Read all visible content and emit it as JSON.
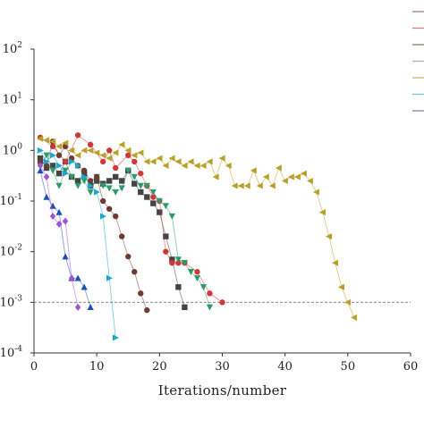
{
  "chart_data": {
    "type": "line",
    "xlabel": "Iterations/number",
    "ylabel": "",
    "xlim": [
      0,
      60
    ],
    "ylim": [
      0.0001,
      100
    ],
    "yscale": "log",
    "x_ticks": [
      0,
      10,
      20,
      30,
      40,
      50,
      60
    ],
    "y_ticks": [
      {
        "value": 0.0001,
        "base": "10",
        "exp": "-4"
      },
      {
        "value": 0.001,
        "base": "10",
        "exp": "-3"
      },
      {
        "value": 0.01,
        "base": "10",
        "exp": "-2"
      },
      {
        "value": 0.1,
        "base": "10",
        "exp": "-1"
      },
      {
        "value": 1,
        "base": "10",
        "exp": "0"
      },
      {
        "value": 10,
        "base": "10",
        "exp": "1"
      },
      {
        "value": 100,
        "base": "10",
        "exp": "2"
      }
    ],
    "reference_line": {
      "y": 0.001,
      "style": "dashed",
      "color": "#777777"
    },
    "grid": false,
    "legend": {
      "placement": "top-right",
      "swatch_colors": [
        "#9e7b9b",
        "#e07a8a",
        "#8a7a6a",
        "#b0b0b0",
        "#c8b464",
        "#70c8c8",
        "#9b78c8"
      ]
    },
    "series": [
      {
        "color": "#444444",
        "marker": "square",
        "x": [
          1,
          2,
          3,
          4,
          5,
          6,
          7,
          8,
          9,
          10,
          11,
          12,
          13,
          14,
          15,
          16,
          17,
          18,
          19,
          20,
          21,
          22,
          23,
          24
        ],
        "y": [
          0.7,
          0.45,
          0.5,
          0.35,
          0.6,
          0.3,
          0.25,
          0.35,
          0.2,
          0.25,
          0.22,
          0.25,
          0.3,
          0.25,
          0.4,
          0.22,
          0.15,
          0.12,
          0.09,
          0.06,
          0.02,
          0.007,
          0.002,
          0.0008
        ]
      },
      {
        "color": "#d03838",
        "marker": "circle",
        "x": [
          1,
          3,
          5,
          7,
          9,
          11,
          12,
          13,
          15,
          16,
          17,
          18,
          19,
          20,
          21,
          22,
          23,
          24,
          26,
          28,
          30
        ],
        "y": [
          1.8,
          1.2,
          0.6,
          2.0,
          1.3,
          0.6,
          1.0,
          0.45,
          0.8,
          0.6,
          0.35,
          0.2,
          0.12,
          0.1,
          0.01,
          0.006,
          0.006,
          0.006,
          0.004,
          0.0015,
          0.001
        ]
      },
      {
        "color": "#2e9a6a",
        "marker": "triangle-down",
        "x": [
          1,
          2,
          3,
          4,
          5,
          6,
          7,
          8,
          9,
          10,
          11,
          12,
          13,
          14,
          15,
          16,
          17,
          18,
          19,
          20,
          21,
          22,
          23,
          24,
          25,
          26,
          27,
          28
        ],
        "y": [
          0.5,
          0.8,
          0.4,
          0.2,
          0.4,
          0.3,
          0.2,
          0.25,
          0.15,
          0.3,
          0.2,
          0.18,
          0.15,
          0.18,
          0.4,
          0.3,
          0.2,
          0.2,
          0.15,
          0.1,
          0.08,
          0.05,
          0.007,
          0.006,
          0.004,
          0.003,
          0.002,
          0.0008
        ]
      },
      {
        "color": "#6e3a32",
        "marker": "circle",
        "x": [
          1,
          2,
          3,
          4,
          5,
          6,
          7,
          8,
          9,
          10,
          11,
          12,
          13,
          14,
          15,
          16,
          17,
          18
        ],
        "y": [
          0.6,
          0.5,
          1.5,
          0.8,
          1.2,
          0.7,
          0.5,
          0.4,
          0.25,
          0.3,
          0.1,
          0.07,
          0.05,
          0.02,
          0.008,
          0.004,
          0.0015,
          0.0007
        ]
      },
      {
        "color": "#1da7c8",
        "marker": "triangle-right",
        "x": [
          1,
          2,
          3,
          4,
          5,
          6,
          7,
          8,
          9,
          10,
          11,
          12,
          13
        ],
        "y": [
          1.0,
          0.6,
          0.8,
          0.5,
          0.35,
          0.6,
          0.5,
          0.3,
          0.2,
          0.15,
          0.05,
          0.003,
          0.0002
        ]
      },
      {
        "color": "#1f4fb0",
        "marker": "triangle-up",
        "x": [
          1,
          2,
          3,
          4,
          5,
          6,
          7,
          8,
          9
        ],
        "y": [
          0.4,
          0.12,
          0.08,
          0.06,
          0.008,
          0.003,
          0.003,
          0.002,
          0.0008
        ]
      },
      {
        "color": "#a052d8",
        "marker": "diamond",
        "x": [
          1,
          2,
          3,
          4,
          5,
          6,
          7
        ],
        "y": [
          0.5,
          0.3,
          0.05,
          0.035,
          0.04,
          0.003,
          0.0008
        ]
      },
      {
        "color": "#b8a02a",
        "marker": "triangle-left",
        "x": [
          1,
          2,
          3,
          4,
          5,
          6,
          7,
          8,
          9,
          10,
          11,
          12,
          13,
          14,
          15,
          16,
          17,
          18,
          19,
          20,
          21,
          22,
          23,
          24,
          25,
          26,
          27,
          28,
          29,
          30,
          31,
          32,
          33,
          34,
          35,
          36,
          37,
          38,
          39,
          40,
          41,
          42,
          43,
          44,
          45,
          46,
          47,
          48,
          49,
          50,
          51
        ],
        "y": [
          1.7,
          1.6,
          1.5,
          1.2,
          1.4,
          1.0,
          0.8,
          1.0,
          1.0,
          0.9,
          0.8,
          0.7,
          0.9,
          1.3,
          1.0,
          0.8,
          0.9,
          0.6,
          0.6,
          0.7,
          0.5,
          0.7,
          0.6,
          0.5,
          0.6,
          0.5,
          0.5,
          0.6,
          0.3,
          0.7,
          0.5,
          0.2,
          0.2,
          0.2,
          0.4,
          0.2,
          0.3,
          0.2,
          0.45,
          0.25,
          0.3,
          0.3,
          0.35,
          0.25,
          0.15,
          0.06,
          0.02,
          0.006,
          0.002,
          0.001,
          0.0005
        ]
      }
    ]
  }
}
